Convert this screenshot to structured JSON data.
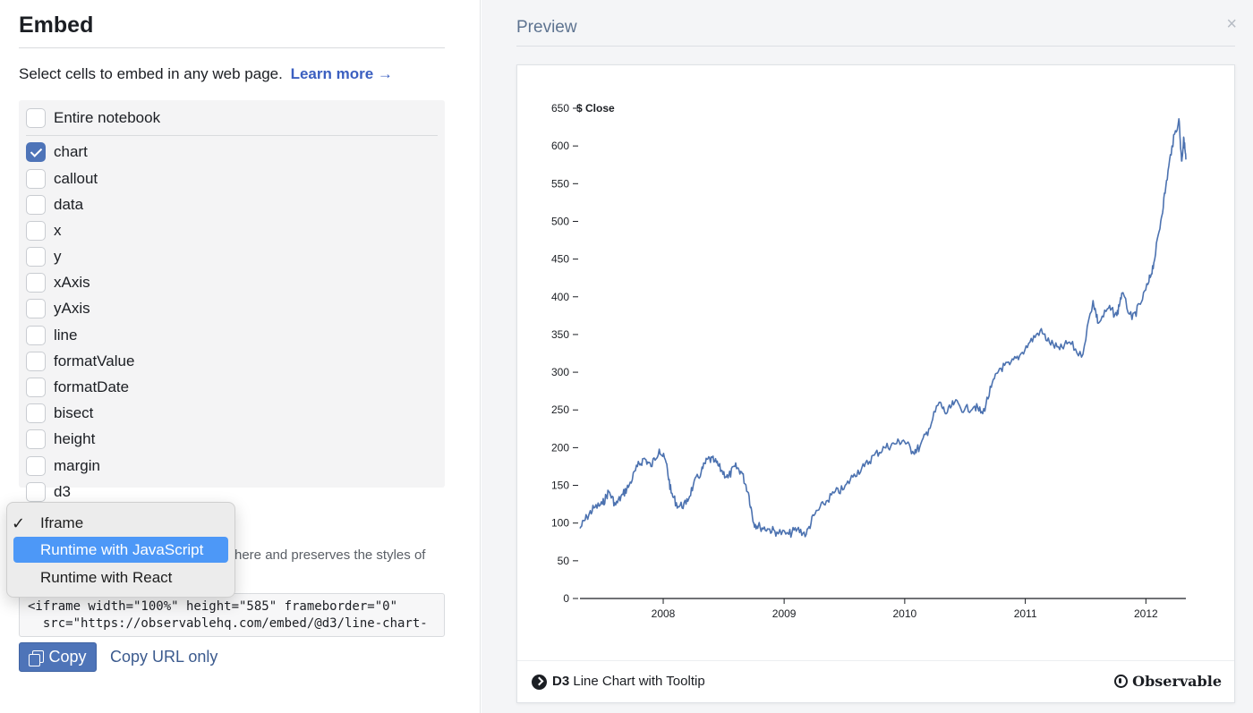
{
  "embed": {
    "title": "Embed",
    "intro": "Select cells to embed in any web page.",
    "learn_more": "Learn more →"
  },
  "cells": [
    {
      "label": "Entire notebook",
      "checked": false
    },
    {
      "label": "chart",
      "checked": true
    },
    {
      "label": "callout",
      "checked": false
    },
    {
      "label": "data",
      "checked": false
    },
    {
      "label": "x",
      "checked": false
    },
    {
      "label": "y",
      "checked": false
    },
    {
      "label": "xAxis",
      "checked": false
    },
    {
      "label": "yAxis",
      "checked": false
    },
    {
      "label": "line",
      "checked": false
    },
    {
      "label": "formatValue",
      "checked": false
    },
    {
      "label": "formatDate",
      "checked": false
    },
    {
      "label": "bisect",
      "checked": false
    },
    {
      "label": "height",
      "checked": false
    },
    {
      "label": "margin",
      "checked": false
    },
    {
      "label": "d3",
      "checked": false
    }
  ],
  "format_menu": {
    "checkmark": "✓",
    "items": [
      "Iframe",
      "Runtime with JavaScript",
      "Runtime with React"
    ],
    "selected": "Iframe",
    "highlighted": "Runtime with JavaScript"
  },
  "help_text": "here and preserves the styles of",
  "code": {
    "line1": "<iframe width=\"100%\" height=\"585\" frameborder=\"0\"",
    "line2": "  src=\"https://observablehq.com/embed/@d3/line-chart-"
  },
  "copy_button": "Copy",
  "copy_url": "Copy URL only",
  "preview": {
    "title": "Preview",
    "close": "×",
    "footer_title_bold": "D3",
    "footer_title": " Line Chart with Tooltip",
    "brand": "Observable"
  },
  "colors": {
    "accent": "#4e74b8",
    "line": "#4c72b0",
    "menu_highlight": "#4d98f7"
  },
  "chart_data": {
    "type": "line",
    "title": "",
    "ylabel": "$ Close",
    "xlabel": "",
    "ylim": [
      0,
      650
    ],
    "yticks": [
      0,
      50,
      100,
      150,
      200,
      250,
      300,
      350,
      400,
      450,
      500,
      550,
      600,
      650
    ],
    "xticks": [
      "2008",
      "2009",
      "2010",
      "2011",
      "2012"
    ],
    "xlim": [
      "2007-04-24",
      "2012-05-01"
    ],
    "grid": false,
    "series": [
      {
        "points": [
          [
            "2007-04-24",
            93
          ],
          [
            "2007-05-15",
            108
          ],
          [
            "2007-06-05",
            120
          ],
          [
            "2007-07-01",
            125
          ],
          [
            "2007-07-20",
            142
          ],
          [
            "2007-08-10",
            124
          ],
          [
            "2007-09-01",
            138
          ],
          [
            "2007-09-20",
            150
          ],
          [
            "2007-10-15",
            175
          ],
          [
            "2007-11-05",
            186
          ],
          [
            "2007-11-25",
            175
          ],
          [
            "2007-12-20",
            198
          ],
          [
            "2008-01-10",
            180
          ],
          [
            "2008-01-25",
            140
          ],
          [
            "2008-02-15",
            122
          ],
          [
            "2008-03-10",
            125
          ],
          [
            "2008-04-01",
            150
          ],
          [
            "2008-04-25",
            168
          ],
          [
            "2008-05-15",
            185
          ],
          [
            "2008-06-05",
            182
          ],
          [
            "2008-06-25",
            170
          ],
          [
            "2008-07-15",
            160
          ],
          [
            "2008-08-05",
            175
          ],
          [
            "2008-08-25",
            168
          ],
          [
            "2008-09-15",
            140
          ],
          [
            "2008-10-01",
            100
          ],
          [
            "2008-10-20",
            95
          ],
          [
            "2008-11-15",
            92
          ],
          [
            "2008-12-10",
            88
          ],
          [
            "2009-01-15",
            85
          ],
          [
            "2009-02-10",
            92
          ],
          [
            "2009-03-09",
            85
          ],
          [
            "2009-04-01",
            110
          ],
          [
            "2009-05-01",
            125
          ],
          [
            "2009-06-01",
            140
          ],
          [
            "2009-07-01",
            145
          ],
          [
            "2009-08-01",
            165
          ],
          [
            "2009-09-01",
            175
          ],
          [
            "2009-10-01",
            190
          ],
          [
            "2009-11-01",
            200
          ],
          [
            "2009-12-01",
            205
          ],
          [
            "2009-12-28",
            210
          ],
          [
            "2010-01-25",
            195
          ],
          [
            "2010-02-15",
            200
          ],
          [
            "2010-03-15",
            225
          ],
          [
            "2010-04-15",
            260
          ],
          [
            "2010-05-07",
            245
          ],
          [
            "2010-06-01",
            260
          ],
          [
            "2010-07-01",
            250
          ],
          [
            "2010-08-01",
            255
          ],
          [
            "2010-08-25",
            245
          ],
          [
            "2010-09-20",
            280
          ],
          [
            "2010-10-15",
            305
          ],
          [
            "2010-11-15",
            310
          ],
          [
            "2010-12-15",
            322
          ],
          [
            "2011-01-15",
            340
          ],
          [
            "2011-02-15",
            355
          ],
          [
            "2011-03-15",
            340
          ],
          [
            "2011-04-15",
            330
          ],
          [
            "2011-05-15",
            340
          ],
          [
            "2011-06-20",
            320
          ],
          [
            "2011-07-25",
            395
          ],
          [
            "2011-08-10",
            365
          ],
          [
            "2011-09-10",
            385
          ],
          [
            "2011-10-05",
            375
          ],
          [
            "2011-10-20",
            405
          ],
          [
            "2011-11-20",
            370
          ],
          [
            "2011-12-15",
            390
          ],
          [
            "2012-01-10",
            420
          ],
          [
            "2012-01-25",
            445
          ],
          [
            "2012-02-15",
            500
          ],
          [
            "2012-03-01",
            545
          ],
          [
            "2012-03-20",
            600
          ],
          [
            "2012-04-10",
            636
          ],
          [
            "2012-04-18",
            580
          ],
          [
            "2012-04-25",
            610
          ],
          [
            "2012-05-01",
            582
          ]
        ]
      }
    ]
  }
}
